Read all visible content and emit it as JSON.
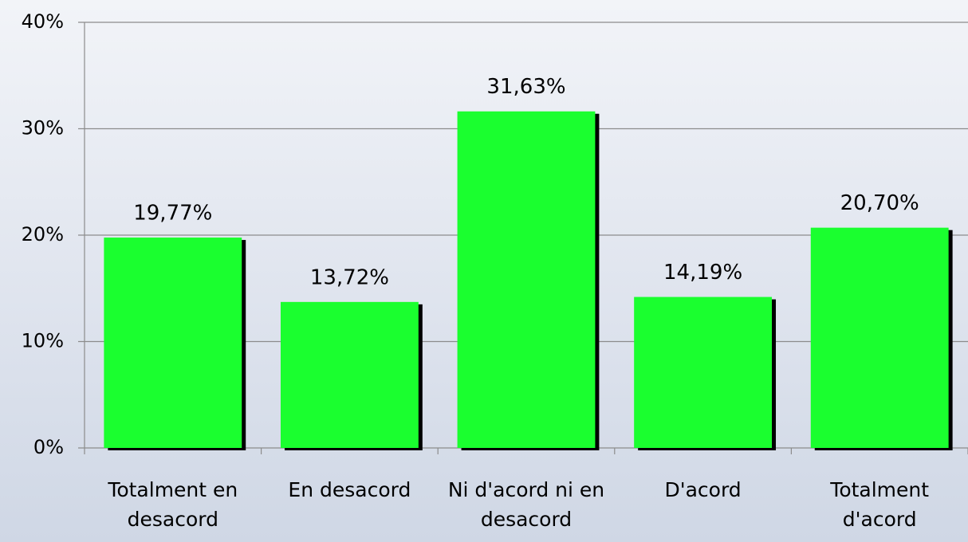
{
  "chart_data": {
    "type": "bar",
    "categories": [
      "Totalment en desacord",
      "En desacord",
      "Ni d'acord ni en desacord",
      "D'acord",
      "Totalment d'acord"
    ],
    "values": [
      19.77,
      13.72,
      31.63,
      14.19,
      20.7
    ],
    "value_labels": [
      "19,77%",
      "13,72%",
      "31,63%",
      "14,19%",
      "20,70%"
    ],
    "color": "#1aff2f",
    "ylim": [
      0,
      40
    ],
    "yticks": [
      {
        "value": 0,
        "label": "0%"
      },
      {
        "value": 10,
        "label": "10%"
      },
      {
        "value": 20,
        "label": "20%"
      },
      {
        "value": 30,
        "label": "30%"
      },
      {
        "value": 40,
        "label": "40%"
      }
    ],
    "grid": true
  }
}
